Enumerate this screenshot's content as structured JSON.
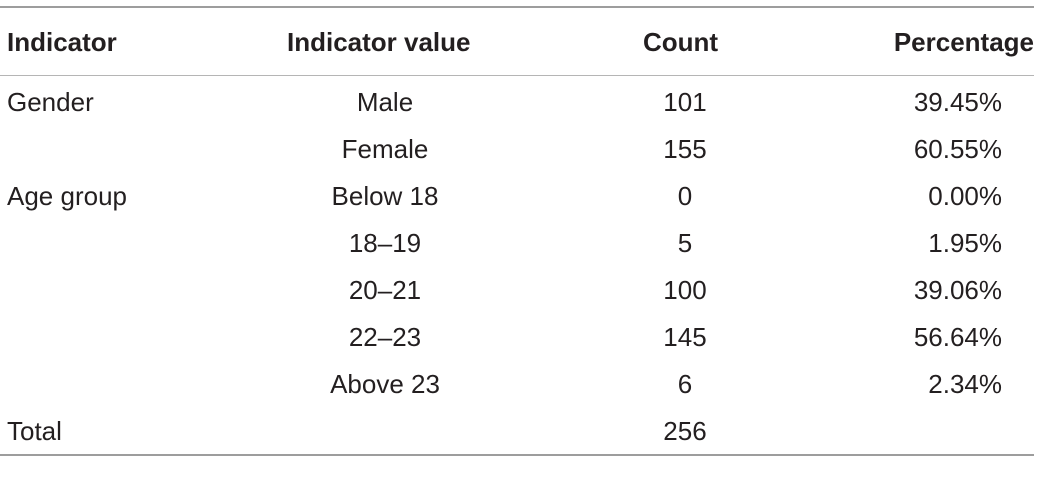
{
  "table": {
    "headers": [
      "Indicator",
      "Indicator value",
      "Count",
      "Percentage"
    ],
    "rows": [
      {
        "indicator": "Gender",
        "value": "Male",
        "count": "101",
        "percentage": "39.45%"
      },
      {
        "indicator": "",
        "value": "Female",
        "count": "155",
        "percentage": "60.55%"
      },
      {
        "indicator": "Age group",
        "value": "Below 18",
        "count": "0",
        "percentage": "0.00%"
      },
      {
        "indicator": "",
        "value": "18–19",
        "count": "5",
        "percentage": "1.95%"
      },
      {
        "indicator": "",
        "value": "20–21",
        "count": "100",
        "percentage": "39.06%"
      },
      {
        "indicator": "",
        "value": "22–23",
        "count": "145",
        "percentage": "56.64%"
      },
      {
        "indicator": "",
        "value": "Above 23",
        "count": "6",
        "percentage": "2.34%"
      },
      {
        "indicator": "Total",
        "value": "",
        "count": "256",
        "percentage": ""
      }
    ]
  }
}
